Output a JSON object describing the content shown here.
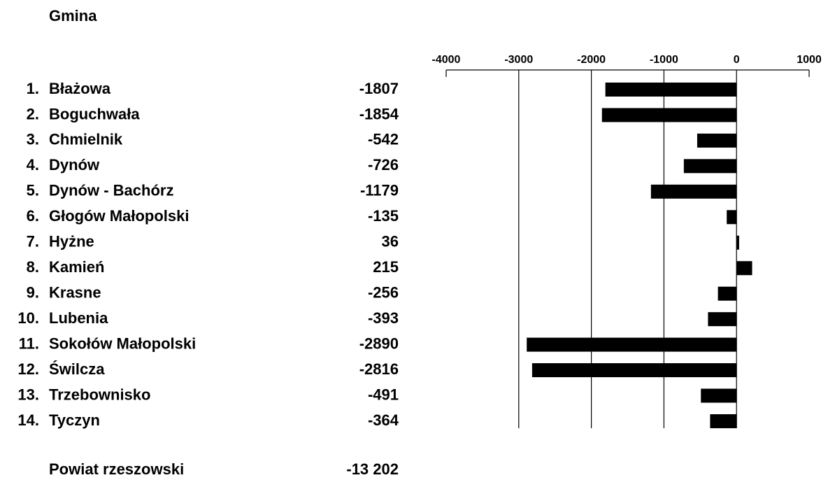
{
  "chart_data": {
    "type": "bar",
    "orientation": "horizontal",
    "title": "Gmina",
    "numbers": [
      "1.",
      "2.",
      "3.",
      "4.",
      "5.",
      "6.",
      "7.",
      "8.",
      "9.",
      "10.",
      "11.",
      "12.",
      "13.",
      "14."
    ],
    "categories": [
      "Błażowa",
      "Boguchwała",
      "Chmielnik",
      "Dynów",
      "Dynów - Bachórz",
      "Głogów Małopolski",
      "Hyżne",
      "Kamień",
      "Krasne",
      "Lubenia",
      "Sokołów Małopolski",
      "Świlcza",
      "Trzebownisko",
      "Tyczyn"
    ],
    "values": [
      -1807,
      -1854,
      -542,
      -726,
      -1179,
      -135,
      36,
      215,
      -256,
      -393,
      -2890,
      -2816,
      -491,
      -364
    ],
    "color": "#000000",
    "xlim": [
      -4000,
      1000
    ],
    "xticks": [
      -4000,
      -3000,
      -2000,
      -1000,
      0,
      1000
    ],
    "grid": true,
    "total_name": "Powiat rzeszowski",
    "total": {
      "value": -13202,
      "label": "-13 202"
    }
  }
}
